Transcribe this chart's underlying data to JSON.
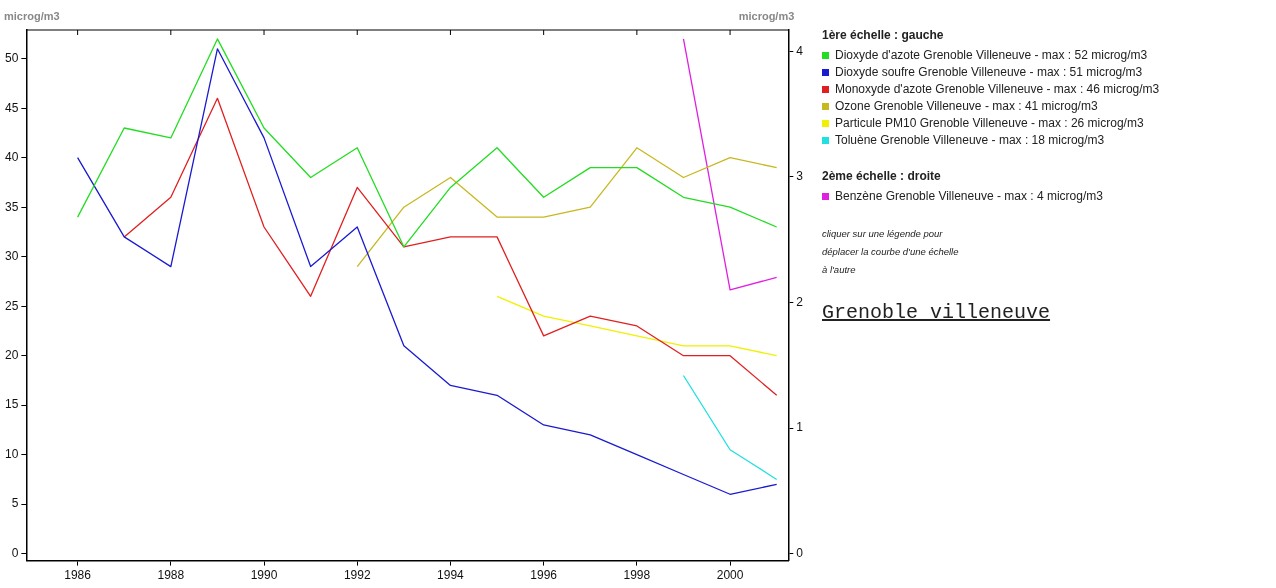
{
  "chart_data": {
    "type": "line",
    "title": "Grenoble villeneuve",
    "ylabel": "microg/m3",
    "y2label": "microg/m3",
    "x": [
      1986,
      1987,
      1988,
      1989,
      1990,
      1991,
      1992,
      1993,
      1994,
      1995,
      1996,
      1997,
      1998,
      1999,
      2000,
      2001
    ],
    "xlim": [
      1984.9,
      2001.25
    ],
    "xticks": [
      1986,
      1988,
      1990,
      1992,
      1994,
      1996,
      1998,
      2000
    ],
    "ylim": [
      -0.7,
      52.9
    ],
    "yticks": [
      0,
      5,
      10,
      15,
      20,
      25,
      30,
      35,
      40,
      45,
      50
    ],
    "y2lim": [
      -0.056,
      4.17
    ],
    "y2ticks": [
      0,
      1,
      2,
      3,
      4
    ],
    "grid": false,
    "legend": "right",
    "marker": "none",
    "line_style": "solid",
    "annotations": [
      "1ère échelle : gauche",
      "2ème échelle : droite",
      "cliquer sur une légende pour déplacer la courbe d'une échelle à l'autre"
    ],
    "series": [
      {
        "name": "Dioxyde d'azote Grenoble Villeneuve - max : 52 microg/m3",
        "color": "#22dd22",
        "values": [
          34,
          43,
          42,
          52,
          43,
          38,
          41,
          31,
          37,
          41,
          36,
          39,
          39,
          36,
          35,
          33
        ]
      },
      {
        "name": "Dioxyde soufre Grenoble Villeneuve - max : 51 microg/m3",
        "color": "#1a1ad0",
        "values": [
          40,
          32,
          29,
          51,
          42,
          29,
          33,
          21,
          17,
          16,
          13,
          12,
          10,
          8,
          6,
          7
        ]
      },
      {
        "name": "Monoxyde d'azote Grenoble Villeneuve - max : 46 microg/m3",
        "color": "#e02020",
        "values": [
          null,
          32,
          36,
          46,
          33,
          26,
          37,
          31,
          32,
          32,
          22,
          24,
          23,
          20,
          20,
          16
        ]
      },
      {
        "name": "Ozone Grenoble Villeneuve - max : 41 microg/m3",
        "color": "#c8b820",
        "values": [
          null,
          null,
          null,
          null,
          null,
          null,
          29,
          35,
          38,
          34,
          34,
          35,
          41,
          38,
          40,
          39
        ]
      },
      {
        "name": "Particule PM10 Grenoble Villeneuve - max : 26 microg/m3",
        "color": "#f0f000",
        "values": [
          null,
          null,
          null,
          null,
          null,
          null,
          null,
          null,
          null,
          26,
          24,
          23,
          22,
          21,
          21,
          20
        ]
      },
      {
        "name": "Toluène Grenoble Villeneuve - max : 18 microg/m3",
        "color": "#20e0e0",
        "values": [
          null,
          null,
          null,
          null,
          null,
          null,
          null,
          null,
          null,
          null,
          null,
          null,
          null,
          18,
          10.5,
          7.5
        ]
      },
      {
        "name": "Benzène Grenoble Villeneuve - max : 4 microg/m3",
        "color": "#e020e0",
        "axis": "y2",
        "values": [
          null,
          null,
          null,
          null,
          null,
          null,
          null,
          null,
          null,
          null,
          null,
          null,
          null,
          4.1,
          2.1,
          2.2
        ]
      }
    ]
  }
}
